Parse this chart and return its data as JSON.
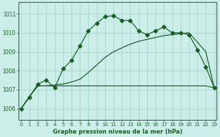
{
  "title": "Graphe pression niveau de la mer (hPa)",
  "bg_color": "#cceee8",
  "grid_color": "#aad4cc",
  "line_color": "#1a5c28",
  "x_ticks": [
    0,
    1,
    2,
    3,
    4,
    5,
    6,
    7,
    8,
    9,
    10,
    11,
    12,
    13,
    14,
    15,
    16,
    17,
    18,
    19,
    20,
    21,
    22,
    23
  ],
  "y_ticks": [
    1006,
    1007,
    1008,
    1009,
    1010,
    1011
  ],
  "ylim": [
    1005.4,
    1011.6
  ],
  "xlim": [
    -0.3,
    23.3
  ],
  "series1": [
    1006.0,
    1006.6,
    1007.3,
    1007.5,
    1007.1,
    1008.1,
    1008.55,
    1009.3,
    1010.1,
    1010.5,
    1010.85,
    1010.9,
    1010.65,
    1010.65,
    1010.1,
    1009.9,
    1010.1,
    1010.3,
    1010.0,
    1010.0,
    1009.9,
    1009.1,
    1008.2,
    1007.1
  ],
  "series2": [
    1006.0,
    1006.65,
    1007.2,
    1007.2,
    1007.2,
    1007.2,
    1007.2,
    1007.2,
    1007.2,
    1007.2,
    1007.2,
    1007.2,
    1007.2,
    1007.2,
    1007.2,
    1007.2,
    1007.2,
    1007.2,
    1007.2,
    1007.2,
    1007.2,
    1007.2,
    1007.2,
    1007.1
  ],
  "series3": [
    1006.0,
    1006.65,
    1007.2,
    1007.2,
    1007.25,
    1007.3,
    1007.4,
    1007.55,
    1007.9,
    1008.3,
    1008.7,
    1009.0,
    1009.2,
    1009.4,
    1009.55,
    1009.65,
    1009.75,
    1009.85,
    1009.9,
    1009.95,
    1010.0,
    1009.5,
    1009.0,
    1007.1
  ],
  "marker": "D",
  "markersize": 2.8
}
